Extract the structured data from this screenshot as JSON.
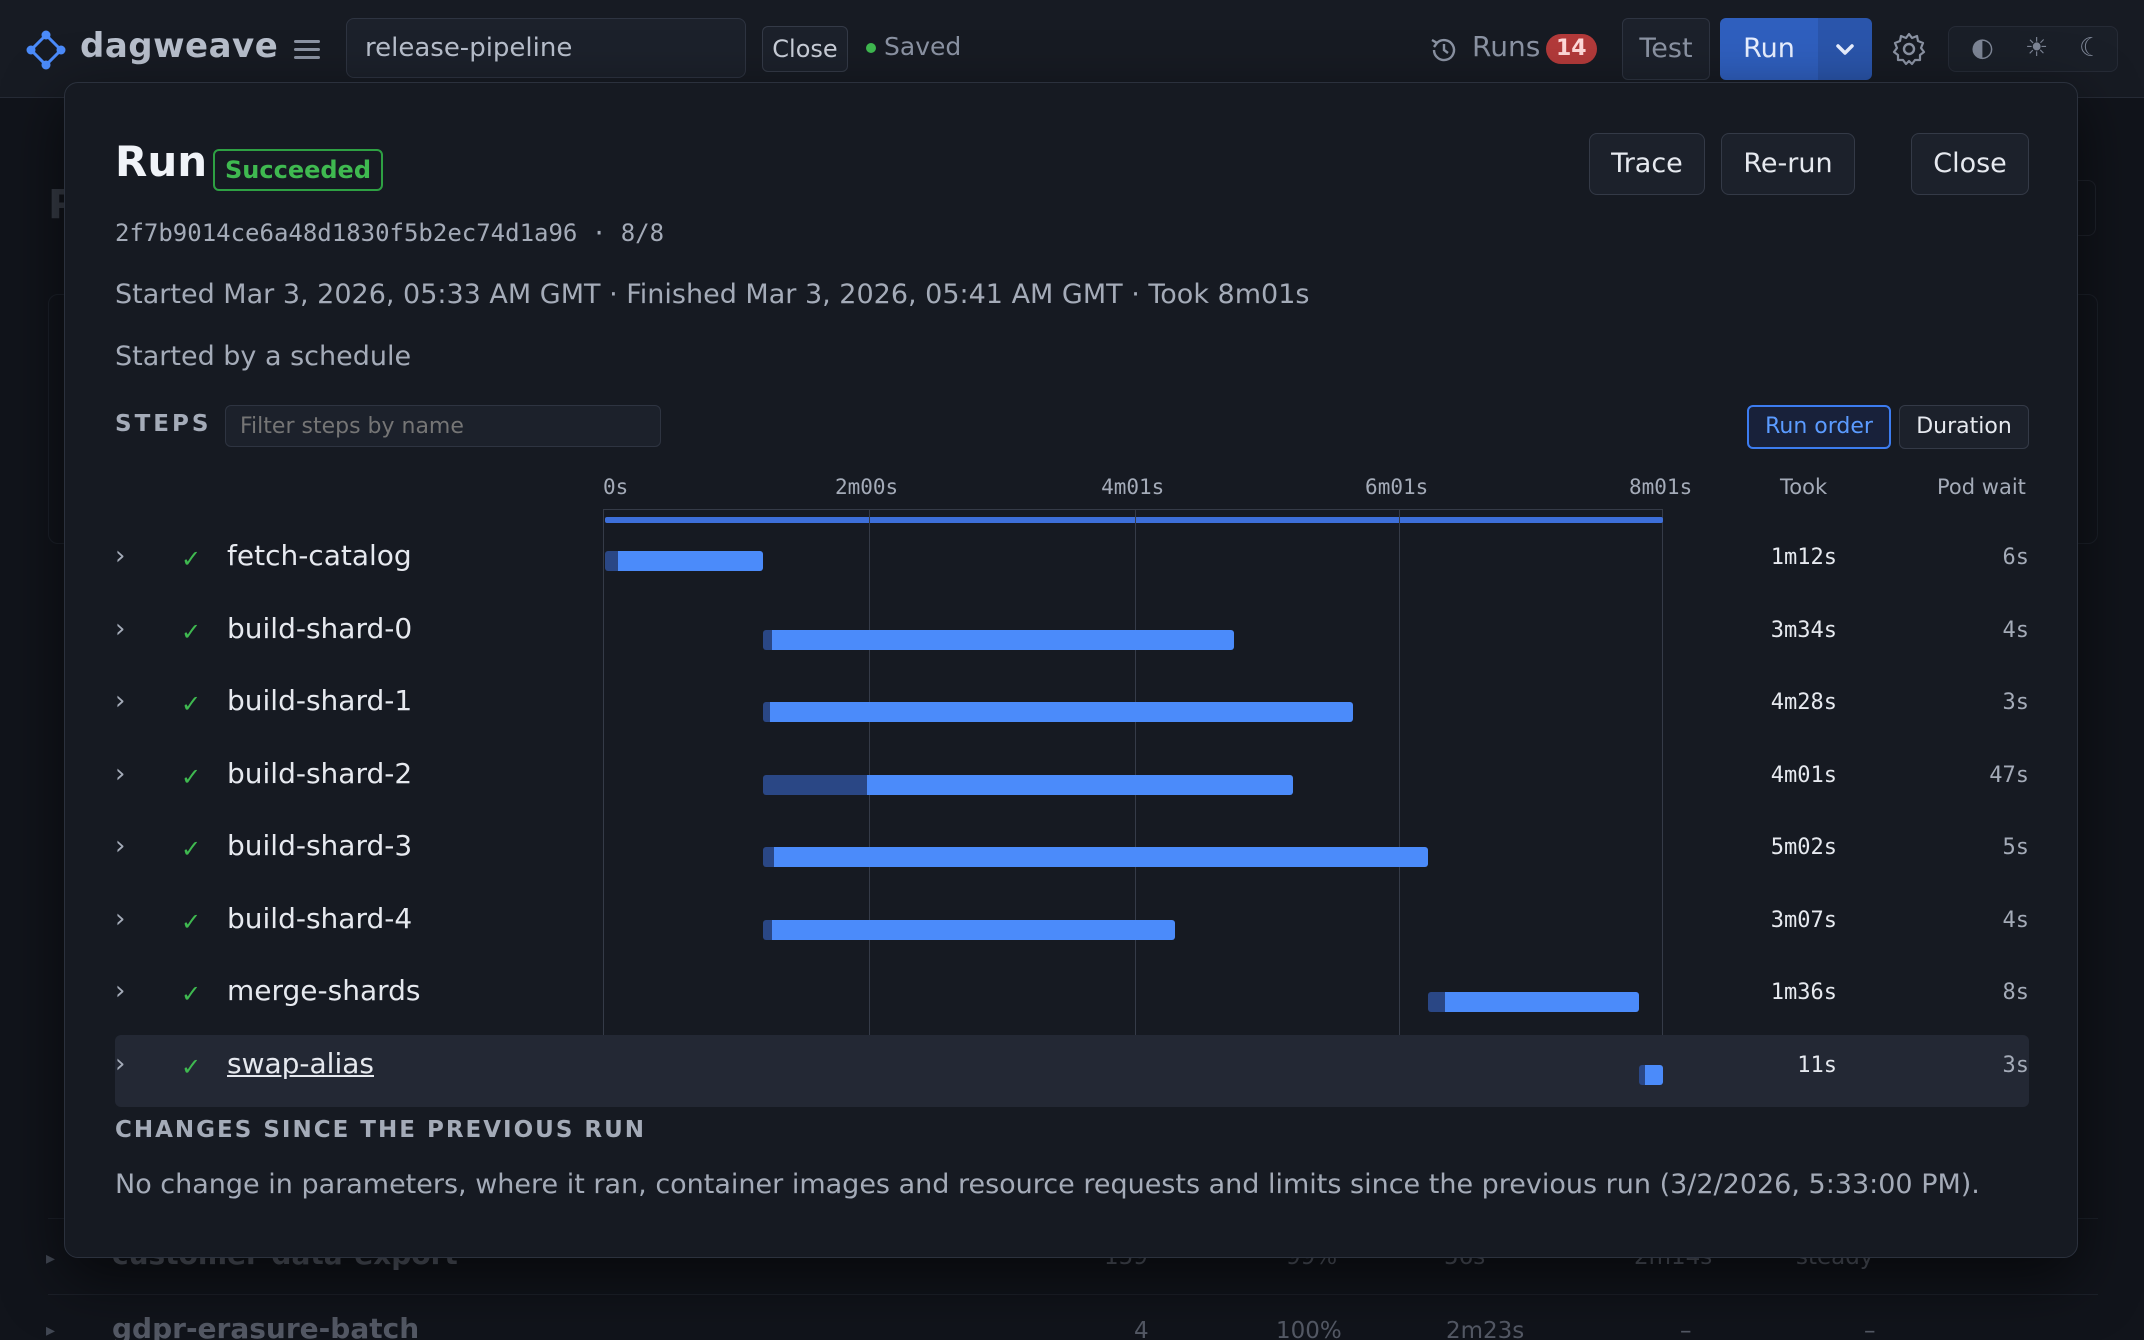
{
  "app": {
    "name": "dagweave",
    "pipeline_name": "release-pipeline",
    "close_label": "Close",
    "saved_label": "Saved",
    "runs_label": "Runs",
    "runs_count": "14",
    "test_label": "Test",
    "run_label": "Run",
    "theme_icons": [
      "◐",
      "☀",
      "☾"
    ]
  },
  "background": {
    "title_fragment": "P",
    "rows": [
      {
        "name": "customer-data-export",
        "c1": "159",
        "c2": "99%",
        "c3": "56s",
        "c4": "2m14s",
        "c5": "steady"
      },
      {
        "name": "gdpr-erasure-batch",
        "c1": "4",
        "c2": "100%",
        "c3": "2m23s",
        "c4": "–",
        "c5": "–"
      }
    ]
  },
  "modal": {
    "title": "Run",
    "status": "Succeeded",
    "trace_label": "Trace",
    "rerun_label": "Re-run",
    "close_label": "Close",
    "hash_line": "2f7b9014ce6a48d1830f5b2ec74d1a96 · 8/8",
    "times_line": "Started Mar 3, 2026, 05:33 AM GMT · Finished Mar 3, 2026, 05:41 AM GMT · Took 8m01s",
    "started_by": "Started by a schedule",
    "steps_label": "STEPS",
    "filter_placeholder": "Filter steps by name",
    "sort_run_order": "Run order",
    "sort_duration": "Duration",
    "col_took": "Took",
    "col_pod_wait": "Pod wait",
    "changes_label": "CHANGES SINCE THE PREVIOUS RUN",
    "changes_text": "No change in parameters, where it ran, container images and resource requests and limits since the previous run (3/2/2026, 5:33:00 PM)."
  },
  "chart_data": {
    "type": "gantt",
    "x_unit": "seconds",
    "x_range": [
      0,
      481
    ],
    "ticks": [
      {
        "value": 0,
        "label": "0s"
      },
      {
        "value": 120,
        "label": "2m00s"
      },
      {
        "value": 241,
        "label": "4m01s"
      },
      {
        "value": 361,
        "label": "6m01s"
      },
      {
        "value": 481,
        "label": "8m01s"
      }
    ],
    "total_duration": 481,
    "steps": [
      {
        "name": "fetch-catalog",
        "queued_at": 0,
        "start": 6,
        "end": 72,
        "took": "1m12s",
        "pod_wait": "6s",
        "status": "success"
      },
      {
        "name": "build-shard-0",
        "queued_at": 72,
        "start": 76,
        "end": 286,
        "took": "3m34s",
        "pod_wait": "4s",
        "status": "success"
      },
      {
        "name": "build-shard-1",
        "queued_at": 72,
        "start": 75,
        "end": 340,
        "took": "4m28s",
        "pod_wait": "3s",
        "status": "success"
      },
      {
        "name": "build-shard-2",
        "queued_at": 72,
        "start": 119,
        "end": 313,
        "took": "4m01s",
        "pod_wait": "47s",
        "status": "success"
      },
      {
        "name": "build-shard-3",
        "queued_at": 72,
        "start": 77,
        "end": 374,
        "took": "5m02s",
        "pod_wait": "5s",
        "status": "success"
      },
      {
        "name": "build-shard-4",
        "queued_at": 72,
        "start": 76,
        "end": 259,
        "took": "3m07s",
        "pod_wait": "4s",
        "status": "success"
      },
      {
        "name": "merge-shards",
        "queued_at": 374,
        "start": 382,
        "end": 470,
        "took": "1m36s",
        "pod_wait": "8s",
        "status": "success"
      },
      {
        "name": "swap-alias",
        "queued_at": 470,
        "start": 473,
        "end": 481,
        "took": "11s",
        "pod_wait": "3s",
        "status": "success"
      }
    ],
    "highlighted_step": "swap-alias"
  }
}
